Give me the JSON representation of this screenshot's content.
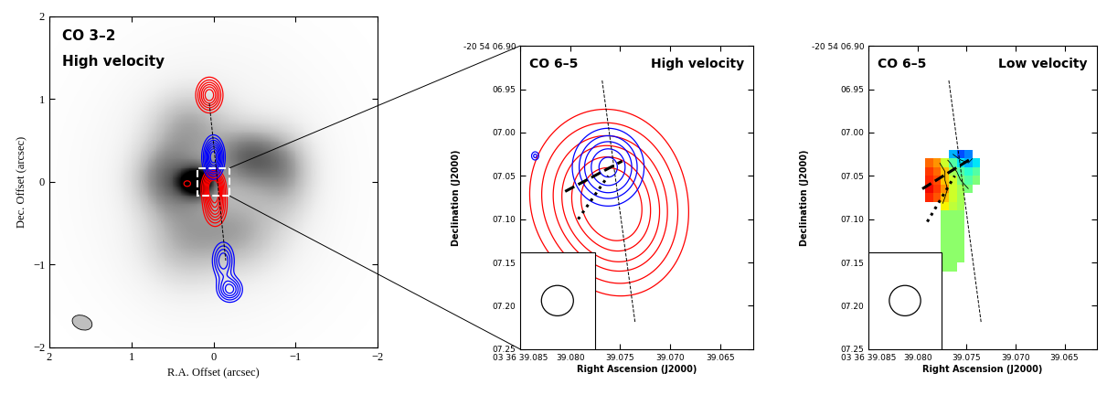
{
  "chart_data": [
    {
      "type": "contour",
      "title": "CO 3–2",
      "subtitle": "High velocity",
      "xlabel": "R.A. Offset (arcsec)",
      "ylabel": "Dec. Offset (arcsec)",
      "xlim": [
        2,
        -2
      ],
      "ylim": [
        -2,
        2
      ],
      "xticks": [
        2,
        1,
        0,
        {
          "value": -1,
          "label": "−1"
        },
        {
          "value": -2,
          "label": "−2"
        }
      ],
      "yticks": [
        {
          "value": -2,
          "label": "−2"
        },
        {
          "value": -1,
          "label": "−1"
        },
        0,
        1,
        2
      ],
      "image": {
        "clim": [
          0,
          1
        ],
        "components": [
          {
            "x": 0.2,
            "y": 0.0,
            "sx": 0.15,
            "sy": 0.12,
            "peak": 0.9
          },
          {
            "x": 0.55,
            "y": 0.05,
            "sx": 0.3,
            "sy": 0.3,
            "peak": 0.45
          },
          {
            "x": -0.45,
            "y": 0.3,
            "sx": 0.3,
            "sy": 0.25,
            "peak": 0.5
          },
          {
            "x": -0.9,
            "y": 0.1,
            "sx": 0.25,
            "sy": 0.35,
            "peak": 0.3
          },
          {
            "x": 0.3,
            "y": 0.7,
            "sx": 0.35,
            "sy": 0.3,
            "peak": 0.3
          },
          {
            "x": -0.3,
            "y": -0.6,
            "sx": 0.4,
            "sy": 0.35,
            "peak": 0.3
          },
          {
            "x": 0.4,
            "y": -0.7,
            "sx": 0.35,
            "sy": 0.4,
            "peak": 0.25
          },
          {
            "x": 0.0,
            "y": 0.0,
            "sx": 1.0,
            "sy": 1.1,
            "peak": 0.15
          }
        ]
      },
      "series": [
        {
          "color": "red",
          "levels": [
            0.2,
            0.3,
            0.4,
            0.5,
            0.6,
            0.7,
            0.8,
            0.9
          ],
          "components": [
            {
              "x": 0.05,
              "y": 1.05,
              "sx": 0.1,
              "sy": 0.13,
              "peak": 0.8
            },
            {
              "x": 0.0,
              "y": -0.05,
              "sx": 0.08,
              "sy": 0.12,
              "peak": 1.0
            },
            {
              "x": -0.02,
              "y": -0.3,
              "sx": 0.09,
              "sy": 0.15,
              "peak": 0.7
            },
            {
              "x": 0.32,
              "y": -0.02,
              "sx": 0.06,
              "sy": 0.05,
              "peak": 0.25
            }
          ]
        },
        {
          "color": "blue",
          "levels": [
            0.2,
            0.3,
            0.4,
            0.5,
            0.6,
            0.7,
            0.8,
            0.9
          ],
          "components": [
            {
              "x": 0.0,
              "y": 0.3,
              "sx": 0.08,
              "sy": 0.15,
              "peak": 1.0
            },
            {
              "x": -0.12,
              "y": -0.95,
              "sx": 0.09,
              "sy": 0.15,
              "peak": 0.6
            },
            {
              "x": -0.2,
              "y": -1.3,
              "sx": 0.1,
              "sy": 0.1,
              "peak": 0.65
            }
          ]
        }
      ],
      "lines": [
        {
          "x": [
            0.05,
            -0.15
          ],
          "y": [
            0.95,
            -0.95
          ],
          "line_style": "dashed"
        }
      ],
      "zoom_box": {
        "x": [
          0.2,
          -0.2
        ],
        "y": [
          -0.17,
          0.17
        ]
      },
      "beam": {
        "width": 0.25,
        "height": 0.17,
        "angle": 20
      }
    },
    {
      "type": "contour",
      "title": "CO 6–5",
      "subtitle": "High velocity",
      "xlabel": "Right Ascension (J2000)",
      "ylabel": "Declination (J2000)",
      "xlim": [
        39.085,
        39.0617
      ],
      "ylim": [
        7.25,
        6.9
      ],
      "xticks": [
        {
          "value": 39.085,
          "label": "03 36 39.085"
        },
        {
          "value": 39.08,
          "label": "39.080"
        },
        39.075,
        {
          "value": 39.07,
          "label": "39.070"
        },
        39.065
      ],
      "yticks": [
        {
          "value": 6.9,
          "label": "-20 54 06.90"
        },
        {
          "value": 6.95,
          "label": "06.95"
        },
        {
          "value": 7.0,
          "label": "07.00"
        },
        {
          "value": 7.05,
          "label": "07.05"
        },
        {
          "value": 7.1,
          "label": "07.10"
        },
        {
          "value": 7.15,
          "label": "07.15"
        },
        {
          "value": 7.2,
          "label": "07.20"
        },
        {
          "value": 7.25,
          "label": "07.25"
        }
      ],
      "series": [
        {
          "color": "red",
          "levels": [
            0.1,
            0.2,
            0.35,
            0.5,
            0.7,
            0.9
          ],
          "components": [
            {
              "x": 39.0765,
              "y": 7.07,
              "sx": 0.0035,
              "sy": 0.045,
              "peak": 1.0
            },
            {
              "x": 39.0745,
              "y": 7.11,
              "sx": 0.003,
              "sy": 0.04,
              "peak": 0.5
            }
          ]
        },
        {
          "color": "blue",
          "levels": [
            0.2,
            0.35,
            0.5,
            0.7,
            0.9
          ],
          "components": [
            {
              "x": 39.0762,
              "y": 7.04,
              "sx": 0.002,
              "sy": 0.025,
              "peak": 1.0
            },
            {
              "x": 39.0835,
              "y": 7.027,
              "sx": 0.0003,
              "sy": 0.004,
              "peak": 0.4
            }
          ]
        }
      ],
      "lines": [
        {
          "x": [
            39.0768,
            39.0735
          ],
          "y": [
            6.94,
            7.22
          ],
          "line_style": "dashed"
        },
        {
          "x": [
            39.0805,
            39.0748
          ],
          "y": [
            7.068,
            7.033
          ],
          "line_style": "dashed"
        },
        {
          "x": [
            39.0792,
            39.0762
          ],
          "y": [
            7.1,
            7.05
          ],
          "line_style": "dotted"
        }
      ],
      "beam": {
        "width": 0.0032,
        "height": 0.035
      }
    },
    {
      "type": "heatmap",
      "title": "CO 6–5",
      "subtitle": "Low velocity",
      "xlabel": "Right Ascension (J2000)",
      "ylabel": "Declination (J2000)",
      "xlim": [
        39.085,
        39.0617
      ],
      "ylim": [
        7.25,
        6.9
      ],
      "xticks": [
        {
          "value": 39.085,
          "label": "03 36 39.085"
        },
        {
          "value": 39.08,
          "label": "39.080"
        },
        39.075,
        {
          "value": 39.07,
          "label": "39.070"
        },
        39.065
      ],
      "yticks": [
        {
          "value": 6.9,
          "label": "-20 54 06.90"
        },
        {
          "value": 6.95,
          "label": "06.95"
        },
        {
          "value": 7.0,
          "label": "07.00"
        },
        {
          "value": 7.05,
          "label": "07.05"
        },
        {
          "value": 7.1,
          "label": "07.10"
        },
        {
          "value": 7.15,
          "label": "07.15"
        },
        {
          "value": 7.2,
          "label": "07.20"
        },
        {
          "value": 7.25,
          "label": "07.25"
        }
      ],
      "x_edges": [
        39.0792,
        39.0784,
        39.0776,
        39.0768,
        39.076,
        39.0752,
        39.0744,
        39.0736
      ],
      "y_edges": [
        7.02,
        7.03,
        7.04,
        7.05,
        7.06,
        7.07,
        7.08,
        7.09,
        7.1,
        7.11,
        7.12,
        7.13,
        7.14,
        7.15,
        7.16
      ],
      "cells": [
        [
          null,
          null,
          null,
          3,
          2,
          2.5,
          null
        ],
        [
          8,
          7.5,
          6,
          4.5,
          3.5,
          3,
          3.5
        ],
        [
          8.5,
          8,
          7,
          5.5,
          4.5,
          4,
          4.5
        ],
        [
          8.7,
          8.3,
          7,
          6,
          5,
          4.5,
          5
        ],
        [
          9,
          8.5,
          7.5,
          6,
          5.5,
          5,
          null
        ],
        [
          8.7,
          8.2,
          7,
          6,
          5.5,
          null,
          null
        ],
        [
          null,
          null,
          6.5,
          5.8,
          5.5,
          null,
          null
        ],
        [
          null,
          null,
          5.2,
          5.2,
          5.2,
          null,
          null
        ],
        [
          null,
          null,
          5.2,
          5.2,
          5.2,
          null,
          null
        ],
        [
          null,
          null,
          5.2,
          5.2,
          5.2,
          null,
          null
        ],
        [
          null,
          null,
          5.2,
          5.2,
          5.2,
          null,
          null
        ],
        [
          null,
          null,
          5.2,
          5.2,
          5.2,
          null,
          null
        ],
        [
          null,
          null,
          5.2,
          5.2,
          5.2,
          null,
          null
        ],
        [
          null,
          null,
          5.2,
          5.2,
          null,
          null,
          null
        ]
      ],
      "clim": [
        0,
        10
      ],
      "contour_levels": [
        3,
        5,
        7
      ],
      "lines": [
        {
          "x": [
            39.0768,
            39.0735
          ],
          "y": [
            6.94,
            7.22
          ],
          "line_style": "dashed"
        },
        {
          "x": [
            39.0795,
            39.0745
          ],
          "y": [
            7.065,
            7.03
          ],
          "line_style": "dashed"
        },
        {
          "x": [
            39.079,
            39.0762
          ],
          "y": [
            7.103,
            7.05
          ],
          "line_style": "dotted"
        }
      ],
      "beam": {
        "width": 0.0032,
        "height": 0.035
      }
    }
  ]
}
